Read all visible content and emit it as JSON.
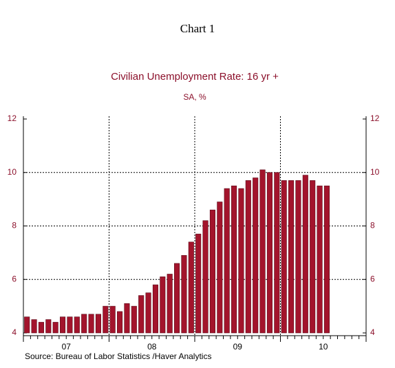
{
  "chart_data": {
    "type": "bar",
    "title": "Chart 1",
    "subtitle": "Civilian Unemployment Rate: 16 yr +",
    "units": "SA, %",
    "source": "Source:  Bureau of Labor Statistics /Haver Analytics",
    "x_labels": [
      "07",
      "08",
      "09",
      "10"
    ],
    "values": [
      4.6,
      4.5,
      4.4,
      4.5,
      4.4,
      4.6,
      4.6,
      4.6,
      4.7,
      4.7,
      4.7,
      5.0,
      5.0,
      4.8,
      5.1,
      5.0,
      5.4,
      5.5,
      5.8,
      6.1,
      6.2,
      6.6,
      6.9,
      7.4,
      7.7,
      8.2,
      8.6,
      8.9,
      9.4,
      9.5,
      9.4,
      9.7,
      9.8,
      10.1,
      10.0,
      10.0,
      9.7,
      9.7,
      9.7,
      9.9,
      9.7,
      9.5,
      9.5
    ],
    "color": "#a3142c",
    "ylim": [
      4,
      12
    ],
    "yticks": [
      4,
      6,
      8,
      10,
      12
    ],
    "grid": true
  }
}
